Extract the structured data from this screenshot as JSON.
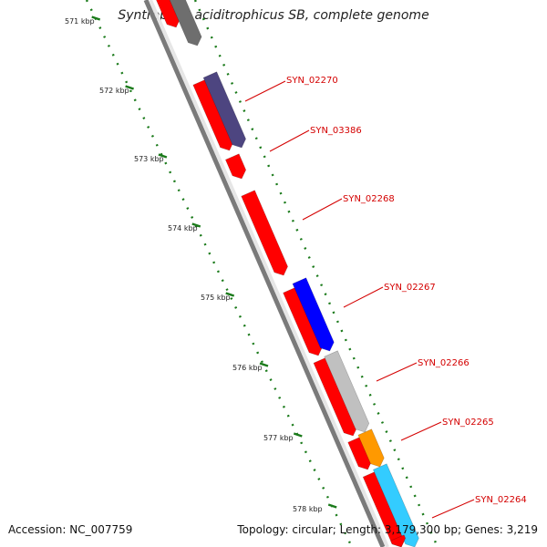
{
  "title": "Syntrophus aciditrophicus SB, complete genome",
  "accession_text": "Accession: NC_007759",
  "summary_text": "Topology: circular; Length: 3,179,300 bp; Genes: 3,219",
  "colors": {
    "background": "#ffffff",
    "backbone_dark": "#7a7a7a",
    "tick_green": "#1a7a1a",
    "gene_red": "#ff0000",
    "gene_label_red": "#d40000"
  },
  "kbp_labels": [
    "571 kbp",
    "572 kbp",
    "573 kbp",
    "574 kbp",
    "575 kbp",
    "576 kbp",
    "577 kbp",
    "578 kbp"
  ],
  "gene_labels": [
    "SYN_02270",
    "SYN_03386",
    "SYN_02268",
    "SYN_02267",
    "SYN_02266",
    "SYN_02265",
    "SYN_02264"
  ],
  "genes": [
    {
      "name": "gene-a",
      "color": "#ff0000",
      "track": "inner"
    },
    {
      "name": "gene-b",
      "color": "#6e6e6e",
      "track": "outer"
    },
    {
      "name": "gene-c",
      "color": "#ff0000",
      "track": "inner"
    },
    {
      "name": "gene-d",
      "color": "#4d4580",
      "track": "outer"
    },
    {
      "name": "gene-e",
      "color": "#ff0000",
      "track": "inner"
    },
    {
      "name": "gene-f",
      "color": "#ff0000",
      "track": "inner"
    },
    {
      "name": "gene-g",
      "color": "#ff0000",
      "track": "inner"
    },
    {
      "name": "gene-h",
      "color": "#0000ff",
      "track": "outer"
    },
    {
      "name": "gene-i",
      "color": "#ff0000",
      "track": "inner"
    },
    {
      "name": "gene-j",
      "color": "#c0c0c0",
      "track": "outer"
    },
    {
      "name": "gene-k",
      "color": "#ff0000",
      "track": "inner"
    },
    {
      "name": "gene-l",
      "color": "#ff9900",
      "track": "outer"
    },
    {
      "name": "gene-m",
      "color": "#ff0000",
      "track": "inner"
    },
    {
      "name": "gene-n",
      "color": "#33ccff",
      "track": "outer"
    },
    {
      "name": "gene-o",
      "color": "#ff0000",
      "track": "inner"
    }
  ]
}
